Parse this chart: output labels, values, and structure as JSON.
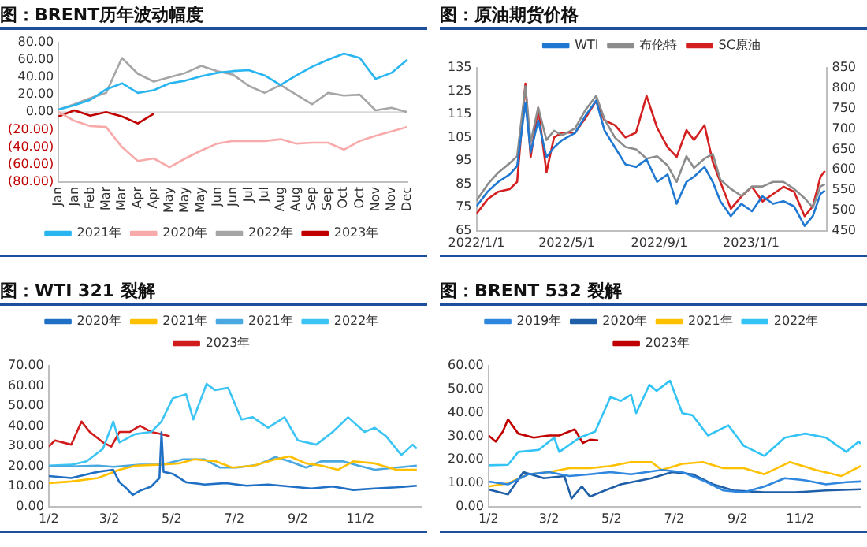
{
  "chart_data": [
    {
      "type": "line",
      "title": "图：BRENT历年波动幅度",
      "legend": "bottom",
      "categories": [
        "Jan",
        "Jan",
        "Feb",
        "Mar",
        "Mar",
        "Apr",
        "Apr",
        "May",
        "May",
        "May",
        "Jun",
        "Jun",
        "Jul",
        "Jul",
        "Aug",
        "Aug",
        "Sep",
        "Sep",
        "Oct",
        "Oct",
        "Nov",
        "Nov",
        "Dec"
      ],
      "ylim": [
        -80,
        80
      ],
      "yticks": [
        {
          "value": 80,
          "label": "80.00"
        },
        {
          "value": 60,
          "label": "60.00"
        },
        {
          "value": 40,
          "label": "40.00"
        },
        {
          "value": 20,
          "label": "20.00"
        },
        {
          "value": 0,
          "label": "0.00"
        },
        {
          "value": -20,
          "label": "(20.00)"
        },
        {
          "value": -40,
          "label": "(40.00)"
        },
        {
          "value": -60,
          "label": "(60.00)"
        },
        {
          "value": -80,
          "label": "(80.00)"
        }
      ],
      "ref_lines": [
        {
          "axis": "y",
          "value": 0,
          "color": "#d9d9d9"
        }
      ],
      "series": [
        {
          "name": "2021年",
          "color": "#29b6f0",
          "values": [
            3,
            8,
            14,
            26,
            33,
            22,
            25,
            33,
            36,
            41,
            45,
            47,
            48,
            42,
            31,
            42,
            52,
            60,
            67,
            62,
            38,
            45,
            60
          ]
        },
        {
          "name": "2020年",
          "color": "#f8aaaa",
          "values": [
            0,
            -10,
            -16,
            -17,
            -40,
            -56,
            -53,
            -63,
            -53,
            -44,
            -36,
            -33,
            -33,
            -33,
            -31,
            -36,
            -35,
            -35,
            -43,
            -33,
            -27,
            -22,
            -17
          ]
        },
        {
          "name": "2022年",
          "color": "#a6a6a6",
          "values": [
            3,
            9,
            16,
            22,
            62,
            44,
            35,
            40,
            45,
            53,
            47,
            43,
            30,
            22,
            31,
            20,
            9,
            22,
            19,
            20,
            2,
            5,
            0
          ]
        },
        {
          "name": "2023年",
          "color": "#c00000",
          "values": [
            -5,
            2,
            -4,
            0,
            -5,
            -13,
            -2,
            null,
            null,
            null,
            null,
            null,
            null,
            null,
            null,
            null,
            null,
            null,
            null,
            null,
            null,
            null,
            null
          ]
        }
      ]
    },
    {
      "type": "line",
      "title": "图：原油期货价格",
      "legend": "top",
      "x": [
        "2022-01-01",
        "2022-01-16",
        "2022-01-30",
        "2022-02-14",
        "2022-02-24",
        "2022-03-07",
        "2022-03-14",
        "2022-03-24",
        "2022-04-04",
        "2022-04-14",
        "2022-04-25",
        "2022-05-12",
        "2022-05-26",
        "2022-06-09",
        "2022-06-20",
        "2022-07-04",
        "2022-07-18",
        "2022-08-01",
        "2022-08-15",
        "2022-08-29",
        "2022-09-12",
        "2022-09-24",
        "2022-10-07",
        "2022-10-17",
        "2022-10-31",
        "2022-11-11",
        "2022-11-21",
        "2022-12-05",
        "2022-12-19",
        "2023-01-02",
        "2023-01-16",
        "2023-01-30",
        "2023-02-13",
        "2023-02-27",
        "2023-03-13",
        "2023-03-24",
        "2023-04-03",
        "2023-04-09"
      ],
      "xlim": [
        "2022-01-01",
        "2023-04-12"
      ],
      "xticks": [
        {
          "value": "2022-01-01",
          "label": "2022/1/1"
        },
        {
          "value": "2022-05-01",
          "label": "2022/5/1"
        },
        {
          "value": "2022-09-01",
          "label": "2022/9/1"
        },
        {
          "value": "2023-01-01",
          "label": "2023/1/1"
        }
      ],
      "ylim": [
        65,
        135
      ],
      "yticks": [
        65,
        75,
        85,
        95,
        105,
        115,
        125,
        135
      ],
      "y2lim": [
        450,
        850
      ],
      "y2ticks": [
        450,
        500,
        550,
        600,
        650,
        700,
        750,
        800,
        850
      ],
      "series": [
        {
          "name": "WTI",
          "color": "#1f78d1",
          "values": [
            75.5,
            81.9,
            86,
            89.2,
            92.8,
            120,
            98.7,
            112.4,
            96.6,
            100.8,
            104,
            107,
            114.5,
            120.9,
            108.2,
            100.8,
            93.5,
            92.4,
            95.6,
            86,
            89.2,
            76.6,
            86,
            88.2,
            92.4,
            86,
            77.7,
            71.3,
            76.6,
            73.4,
            79.8,
            76.6,
            77.7,
            75.5,
            67.1,
            71.3,
            80.8,
            82.3
          ]
        },
        {
          "name": "布伦特",
          "color": "#8c8c8c",
          "values": [
            78,
            85,
            90,
            94,
            97,
            127,
            103,
            118,
            104,
            108,
            106,
            109,
            117,
            123,
            113,
            105,
            101,
            100,
            96,
            97,
            93,
            86,
            97,
            92,
            96,
            98,
            87,
            83,
            80,
            84,
            84,
            86,
            86,
            83,
            79,
            75,
            84,
            85
          ]
        },
        {
          "name": "SC原油",
          "color": "#d42020",
          "axis": "y2",
          "values": [
            492,
            528,
            546,
            552,
            570,
            811,
            631,
            751,
            594,
            679,
            691,
            691,
            727,
            769,
            721,
            709,
            679,
            691,
            781,
            703,
            655,
            631,
            697,
            673,
            709,
            619,
            570,
            504,
            534,
            558,
            522,
            540,
            558,
            546,
            486,
            510,
            582,
            597
          ]
        }
      ]
    },
    {
      "type": "line",
      "title": "图：WTI 321 裂解",
      "legend": "top",
      "xlim": [
        "--01-02",
        "--12-31"
      ],
      "xticks": [
        {
          "value": "--01-02",
          "label": "1/2"
        },
        {
          "value": "--03-02",
          "label": "3/2"
        },
        {
          "value": "--05-02",
          "label": "5/2"
        },
        {
          "value": "--07-02",
          "label": "7/2"
        },
        {
          "value": "--09-02",
          "label": "9/2"
        },
        {
          "value": "--11-02",
          "label": "11/2"
        }
      ],
      "ylim": [
        0,
        70
      ],
      "yticks": [
        {
          "value": 0,
          "label": "0.00"
        },
        {
          "value": 10,
          "label": "10.00"
        },
        {
          "value": 20,
          "label": "20.00"
        },
        {
          "value": 30,
          "label": "30.00"
        },
        {
          "value": 40,
          "label": "40.00"
        },
        {
          "value": 50,
          "label": "50.00"
        },
        {
          "value": 60,
          "label": "60.00"
        },
        {
          "value": 70,
          "label": "70.00"
        }
      ],
      "series": [
        {
          "name": "2020年",
          "color": "#1f6fc5",
          "x": [
            "--01-02",
            "--01-24",
            "--02-19",
            "--03-06",
            "--03-12",
            "--03-19",
            "--03-25",
            "--04-01",
            "--04-12",
            "--04-20",
            "--04-22",
            "--04-24",
            "--05-03",
            "--05-16",
            "--06-03",
            "--06-24",
            "--07-14",
            "--08-04",
            "--08-25",
            "--09-15",
            "--10-06",
            "--10-26",
            "--11-16",
            "--12-07",
            "--12-27"
          ],
          "values": [
            15.2,
            14.2,
            17.3,
            18.3,
            12.1,
            9,
            5.8,
            7.9,
            10,
            14.2,
            37,
            17.3,
            16.3,
            12.1,
            11,
            11.7,
            10.4,
            11,
            10,
            9,
            10,
            8.3,
            9,
            9.6,
            10.4
          ]
        },
        {
          "name": "2021年",
          "color": "#ffc000",
          "x": [
            "--01-02",
            "--01-24",
            "--02-19",
            "--03-12",
            "--03-28",
            "--04-18",
            "--05-09",
            "--05-24",
            "--06-14",
            "--06-30",
            "--07-21",
            "--08-11",
            "--08-25",
            "--09-10",
            "--09-25",
            "--10-11",
            "--10-26",
            "--11-16",
            "--12-07",
            "--12-27"
          ],
          "values": [
            11.7,
            12.5,
            14.2,
            18.3,
            20.4,
            20.8,
            21.5,
            23.5,
            22.5,
            19.4,
            20.4,
            23.5,
            25,
            21.5,
            20.4,
            18.3,
            22.5,
            21.5,
            18.3,
            18.3
          ]
        },
        {
          "name": "2021年",
          "color": "#4aa8e0",
          "x": [
            "--01-02",
            "--01-24",
            "--02-19",
            "--03-06",
            "--04-01",
            "--04-22",
            "--05-13",
            "--06-03",
            "--06-18",
            "--07-04",
            "--07-25",
            "--08-11",
            "--08-25",
            "--09-10",
            "--09-25",
            "--10-16",
            "--10-31",
            "--11-16",
            "--12-07",
            "--12-27"
          ],
          "values": [
            20,
            20,
            20.4,
            19.8,
            20.8,
            20.8,
            23.5,
            23.5,
            19.4,
            19.4,
            20.8,
            24.6,
            22.5,
            19.4,
            22.5,
            22.5,
            20.4,
            18.3,
            19.4,
            20.4
          ]
        },
        {
          "name": "2022年",
          "color": "#3cc4f4",
          "x": [
            "--01-02",
            "--01-24",
            "--02-08",
            "--02-24",
            "--03-06",
            "--03-12",
            "--03-27",
            "--04-12",
            "--04-22",
            "--05-03",
            "--05-16",
            "--05-23",
            "--06-05",
            "--06-13",
            "--06-26",
            "--07-09",
            "--07-20",
            "--08-04",
            "--08-20",
            "--09-02",
            "--09-20",
            "--10-06",
            "--10-21",
            "--11-06",
            "--11-16",
            "--11-27",
            "--12-12",
            "--12-23",
            "--12-27"
          ],
          "values": [
            20.4,
            20.8,
            22.5,
            28.8,
            42.3,
            31.9,
            36,
            37.1,
            42.3,
            53.8,
            55.8,
            43.3,
            61,
            57.9,
            59,
            43.3,
            44.4,
            39.2,
            44.4,
            32.9,
            30.8,
            37.1,
            44.4,
            37.1,
            39.2,
            35,
            25.6,
            30.8,
            28.8
          ]
        },
        {
          "name": "2023年",
          "color": "#d01c1c",
          "x": [
            "--01-02",
            "--01-08",
            "--01-24",
            "--02-03",
            "--02-11",
            "--02-24",
            "--03-04",
            "--03-12",
            "--03-22",
            "--04-01",
            "--04-12",
            "--04-22",
            "--04-30"
          ],
          "values": [
            29.8,
            32.9,
            30.8,
            42.3,
            37.1,
            31.9,
            29.8,
            37.1,
            37.1,
            40.2,
            37.1,
            36,
            35
          ]
        }
      ]
    },
    {
      "type": "line",
      "title": "图：BRENT 532 裂解",
      "legend": "top",
      "xlim": [
        "--01-02",
        "--12-31"
      ],
      "xticks": [
        {
          "value": "--01-02",
          "label": "1/2"
        },
        {
          "value": "--03-02",
          "label": "3/2"
        },
        {
          "value": "--05-02",
          "label": "5/2"
        },
        {
          "value": "--07-02",
          "label": "7/2"
        },
        {
          "value": "--09-02",
          "label": "9/2"
        },
        {
          "value": "--11-02",
          "label": "11/2"
        }
      ],
      "ylim": [
        0,
        60
      ],
      "yticks": [
        {
          "value": 0,
          "label": "0.00"
        },
        {
          "value": 10,
          "label": "10.00"
        },
        {
          "value": 20,
          "label": "20.00"
        },
        {
          "value": 30,
          "label": "30.00"
        },
        {
          "value": 40,
          "label": "40.00"
        },
        {
          "value": 50,
          "label": "50.00"
        },
        {
          "value": 60,
          "label": "60.00"
        }
      ],
      "series": [
        {
          "name": "2019年",
          "color": "#2e86de",
          "x": [
            "--01-02",
            "--01-21",
            "--02-10",
            "--03-02",
            "--03-22",
            "--04-11",
            "--05-01",
            "--05-21",
            "--06-20",
            "--07-10",
            "--07-30",
            "--08-19",
            "--09-08",
            "--09-28",
            "--10-18",
            "--11-07",
            "--11-27",
            "--12-17",
            "--12-31"
          ],
          "values": [
            10.7,
            9.5,
            13.8,
            14.7,
            13,
            13.8,
            14.7,
            13.8,
            15.6,
            14.7,
            11.2,
            6.9,
            6.1,
            8.6,
            12.1,
            11.2,
            9.5,
            10.4,
            10.7
          ]
        },
        {
          "name": "2020年",
          "color": "#1f5fa8",
          "x": [
            "--01-02",
            "--01-21",
            "--02-05",
            "--02-25",
            "--03-17",
            "--03-24",
            "--04-03",
            "--04-11",
            "--04-21",
            "--05-11",
            "--06-10",
            "--06-30",
            "--07-20",
            "--08-09",
            "--08-29",
            "--09-28",
            "--10-28",
            "--11-27",
            "--12-31"
          ],
          "values": [
            7.3,
            5.2,
            14.7,
            12.1,
            13,
            3.5,
            8.6,
            4.3,
            6.1,
            9.5,
            12.1,
            14.7,
            13.8,
            9.5,
            6.9,
            6.1,
            6.1,
            6.9,
            7.4
          ]
        },
        {
          "name": "2021年",
          "color": "#ffc000",
          "x": [
            "--01-02",
            "--01-21",
            "--02-10",
            "--03-02",
            "--03-22",
            "--04-11",
            "--05-01",
            "--05-21",
            "--06-10",
            "--06-20",
            "--07-10",
            "--07-30",
            "--08-19",
            "--09-08",
            "--09-28",
            "--10-23",
            "--11-17",
            "--12-12",
            "--12-31"
          ],
          "values": [
            8.6,
            9.9,
            13.8,
            14.7,
            16.4,
            16.4,
            17.3,
            19,
            19,
            15.6,
            18.2,
            19,
            16.4,
            16.4,
            13.8,
            19,
            15.6,
            13,
            17.3
          ]
        },
        {
          "name": "2022年",
          "color": "#33c4f5",
          "x": [
            "--01-02",
            "--01-21",
            "--01-31",
            "--02-20",
            "--03-07",
            "--03-12",
            "--04-01",
            "--04-16",
            "--05-01",
            "--05-11",
            "--05-21",
            "--05-26",
            "--06-08",
            "--06-15",
            "--06-28",
            "--07-10",
            "--07-20",
            "--08-04",
            "--08-24",
            "--09-08",
            "--09-28",
            "--10-18",
            "--11-07",
            "--11-27",
            "--12-17",
            "--12-29",
            "--12-31"
          ],
          "values": [
            17.6,
            17.8,
            23.3,
            24.2,
            29.4,
            23.3,
            29.4,
            32,
            46.7,
            45,
            47.6,
            39.8,
            51.9,
            49.3,
            53.6,
            39.8,
            38.9,
            30.3,
            34.6,
            25.9,
            21.6,
            29.4,
            31.1,
            29.4,
            23.3,
            27.7,
            26.8
          ]
        },
        {
          "name": "2023年",
          "color": "#c00000",
          "x": [
            "--01-02",
            "--01-09",
            "--01-16",
            "--01-21",
            "--01-31",
            "--02-15",
            "--03-02",
            "--03-12",
            "--03-27",
            "--04-04",
            "--04-11",
            "--04-19"
          ],
          "values": [
            30.3,
            27.7,
            32,
            37.2,
            31.1,
            29.4,
            30.3,
            30.3,
            32.9,
            27.1,
            28.5,
            28.2
          ]
        }
      ]
    }
  ]
}
